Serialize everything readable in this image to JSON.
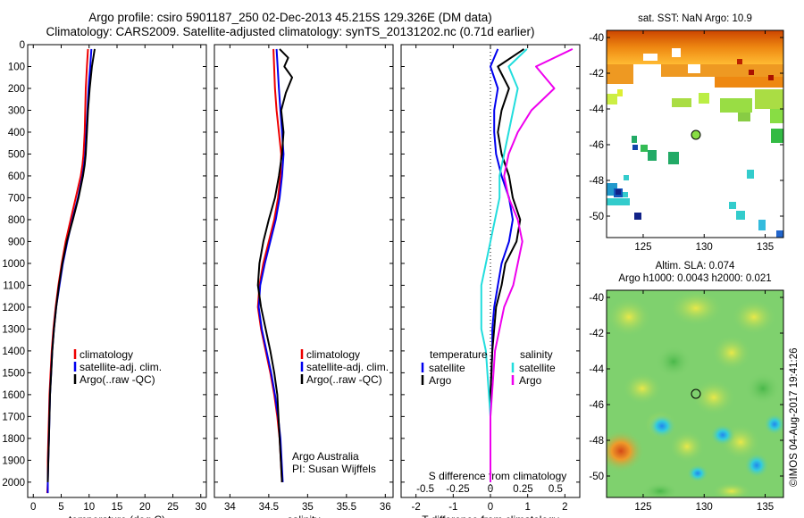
{
  "title_line1": "Argo profile: csiro 5901187_250 02-Dec-2013 45.215S 129.326E (DM data)",
  "title_line2": "Climatology: CARS2009. Satellite-adjusted climatology: synTS_20131202.nc (0.71d earlier)",
  "chart_data": [
    {
      "type": "line",
      "id": "temperature",
      "xlabel": "temperature (deg C)",
      "xlim": [
        -1,
        31
      ],
      "xticks": [
        0,
        5,
        10,
        15,
        20,
        25,
        30
      ],
      "ylim": [
        2070,
        0
      ],
      "yticks": [
        0,
        100,
        200,
        300,
        400,
        500,
        600,
        700,
        800,
        900,
        1000,
        1100,
        1200,
        1300,
        1400,
        1500,
        1600,
        1700,
        1800,
        1900,
        2000
      ],
      "legend": [
        "climatology",
        "satellite-adj. clim.",
        "Argo(..raw -QC)"
      ],
      "series": [
        {
          "name": "climatology",
          "color": "#ee0000",
          "x": [
            9.8,
            9.6,
            9.4,
            9.3,
            9.2,
            9.0,
            8.8,
            8.5,
            7.6,
            6.7,
            5.8,
            5.1,
            4.5,
            4.0,
            3.6,
            3.3,
            3.1,
            2.9,
            2.8,
            2.7,
            2.6,
            2.6,
            2.5
          ],
          "y": [
            20,
            100,
            200,
            300,
            400,
            500,
            550,
            600,
            700,
            800,
            900,
            1000,
            1100,
            1200,
            1300,
            1400,
            1500,
            1600,
            1700,
            1800,
            1900,
            2000,
            2050
          ]
        },
        {
          "name": "satellite-adj. clim.",
          "color": "#0000ee",
          "x": [
            10.4,
            10.2,
            9.9,
            9.7,
            9.5,
            9.3,
            9.1,
            8.8,
            8.0,
            7.0,
            6.1,
            5.3,
            4.7,
            4.1,
            3.7,
            3.4,
            3.2,
            3.0,
            2.9,
            2.8,
            2.7,
            2.6,
            2.6
          ],
          "y": [
            20,
            100,
            200,
            300,
            400,
            500,
            550,
            600,
            700,
            800,
            900,
            1000,
            1100,
            1200,
            1300,
            1400,
            1500,
            1600,
            1700,
            1800,
            1900,
            2000,
            2050
          ]
        },
        {
          "name": "Argo(..raw -QC)",
          "color": "#000000",
          "x": [
            11.0,
            10.5,
            10.1,
            9.8,
            9.6,
            9.4,
            9.2,
            8.9,
            8.1,
            7.1,
            6.0,
            5.2,
            4.6,
            4.1,
            3.7,
            3.4,
            3.2,
            3.0,
            2.9,
            2.8,
            2.7,
            2.6
          ],
          "y": [
            20,
            100,
            200,
            300,
            400,
            500,
            550,
            600,
            700,
            800,
            900,
            1000,
            1100,
            1200,
            1300,
            1400,
            1500,
            1600,
            1700,
            1800,
            1900,
            2000
          ]
        }
      ]
    },
    {
      "type": "line",
      "id": "salinity",
      "xlabel": "salinity",
      "xlim": [
        33.8,
        36.1
      ],
      "xticks": [
        34,
        34.5,
        35,
        35.5,
        36
      ],
      "xtick_labels": [
        "34",
        "34.5",
        "35",
        "35.5",
        "36"
      ],
      "ylim": [
        2070,
        0
      ],
      "legend": [
        "climatology",
        "satellite-adj. clim.",
        "Argo(..raw -QC)"
      ],
      "annotation": [
        "Argo Australia",
        "PI: Susan Wijffels"
      ],
      "series": [
        {
          "name": "climatology",
          "color": "#ee0000",
          "x": [
            34.56,
            34.58,
            34.6,
            34.63,
            34.66,
            34.65,
            34.62,
            34.57,
            34.5,
            34.43,
            34.38,
            34.36,
            34.4,
            34.46,
            34.52,
            34.57,
            34.61,
            34.64,
            34.67
          ],
          "y": [
            20,
            200,
            300,
            400,
            500,
            600,
            700,
            800,
            900,
            1000,
            1100,
            1200,
            1300,
            1400,
            1500,
            1600,
            1700,
            1800,
            2000
          ]
        },
        {
          "name": "satellite-adj. clim.",
          "color": "#0000ee",
          "x": [
            34.6,
            34.63,
            34.65,
            34.67,
            34.69,
            34.67,
            34.64,
            34.59,
            34.52,
            34.45,
            34.39,
            34.37,
            34.41,
            34.47,
            34.53,
            34.58,
            34.62,
            34.65,
            34.68
          ],
          "y": [
            20,
            200,
            300,
            400,
            500,
            600,
            700,
            800,
            900,
            1000,
            1100,
            1200,
            1300,
            1400,
            1500,
            1600,
            1700,
            1800,
            2000
          ]
        },
        {
          "name": "Argo(..raw -QC)",
          "color": "#000000",
          "x": [
            34.64,
            34.75,
            34.7,
            34.8,
            34.72,
            34.66,
            34.69,
            34.67,
            34.63,
            34.58,
            34.5,
            34.43,
            34.38,
            34.36,
            34.4,
            34.46,
            34.52,
            34.57,
            34.61,
            34.64,
            34.67
          ],
          "y": [
            20,
            60,
            100,
            150,
            220,
            300,
            400,
            500,
            600,
            700,
            800,
            900,
            1000,
            1100,
            1200,
            1300,
            1400,
            1500,
            1600,
            1800,
            2000
          ]
        }
      ]
    },
    {
      "type": "line",
      "id": "difference",
      "xlabel": "T difference from climatology",
      "xlabel2": "S difference from climatology",
      "xlim": [
        -2.4,
        2.4
      ],
      "xticks": [
        -2,
        -1,
        0,
        1,
        2
      ],
      "xticks2": [
        -0.5,
        -0.25,
        0,
        0.25,
        0.5
      ],
      "xtick_labels2": [
        "-0.5",
        "-0.25",
        "0",
        "0.25",
        "0.5"
      ],
      "ylim": [
        2070,
        0
      ],
      "legend_headers": [
        "temperature",
        "salinity"
      ],
      "legend": [
        "satellite",
        "Argo",
        "satellite",
        "Argo"
      ],
      "series": [
        {
          "name": "T satellite",
          "color": "#0000ee",
          "x": [
            0.2,
            0.0,
            0.2,
            0.1,
            0.1,
            0.15,
            0.3,
            0.5,
            0.6,
            0.5,
            0.3,
            0.2,
            0.1,
            0.05,
            0.05,
            0.0,
            0.0,
            0.0
          ],
          "y": [
            20,
            100,
            200,
            300,
            400,
            500,
            600,
            700,
            800,
            900,
            1000,
            1100,
            1200,
            1300,
            1400,
            1600,
            1800,
            2000
          ]
        },
        {
          "name": "T Argo",
          "color": "#000000",
          "x": [
            0.9,
            0.2,
            0.5,
            0.3,
            0.2,
            0.3,
            0.5,
            0.6,
            0.8,
            0.7,
            0.4,
            0.3,
            0.15,
            0.1,
            0.05,
            0.0,
            0.0,
            0.0
          ],
          "y": [
            20,
            100,
            200,
            300,
            400,
            500,
            600,
            700,
            800,
            900,
            1000,
            1100,
            1200,
            1300,
            1400,
            1600,
            1800,
            2000
          ]
        },
        {
          "name": "S satellite",
          "color": "#22dddd",
          "x": [
            0.4,
            0.2,
            0.3,
            0.25,
            0.2,
            0.15,
            0.1,
            0.1,
            0.05,
            0.0,
            -0.05,
            -0.1,
            -0.1,
            -0.1,
            -0.05,
            0.0,
            0.0
          ],
          "y": [
            20,
            100,
            200,
            300,
            400,
            500,
            600,
            700,
            800,
            900,
            1000,
            1100,
            1200,
            1300,
            1400,
            1700,
            2000
          ]
        },
        {
          "name": "S Argo",
          "color": "#ee00ee",
          "x": [
            0.9,
            0.5,
            0.7,
            0.45,
            0.3,
            0.2,
            0.15,
            0.2,
            0.3,
            0.35,
            0.3,
            0.25,
            0.15,
            0.1,
            0.05,
            0.0,
            0.0
          ],
          "y": [
            20,
            100,
            200,
            300,
            400,
            500,
            600,
            700,
            800,
            900,
            1000,
            1100,
            1200,
            1300,
            1400,
            1700,
            2000
          ]
        }
      ]
    },
    {
      "type": "heatmap",
      "id": "sst-map",
      "title": "sat. SST: NaN Argo: 10.9",
      "xlim": [
        122,
        136.5
      ],
      "ylim": [
        -51.2,
        -39.6
      ],
      "xticks": [
        125,
        130,
        135
      ],
      "yticks": [
        -40,
        -42,
        -44,
        -46,
        -48,
        -50
      ],
      "marker": {
        "lon": 129.326,
        "lat": -45.215
      }
    },
    {
      "type": "heatmap",
      "id": "sla-map",
      "title": "Altim. SLA: 0.074",
      "title2": "Argo h1000: 0.0043 h2000: 0.021",
      "xlim": [
        122,
        136.5
      ],
      "ylim": [
        -51.2,
        -39.6
      ],
      "xticks": [
        125,
        130,
        135
      ],
      "yticks": [
        -40,
        -42,
        -44,
        -46,
        -48,
        -50
      ],
      "marker": {
        "lon": 129.326,
        "lat": -45.215
      }
    }
  ],
  "side_label": "©IMOS 04-Aug-2017 19:41:26"
}
